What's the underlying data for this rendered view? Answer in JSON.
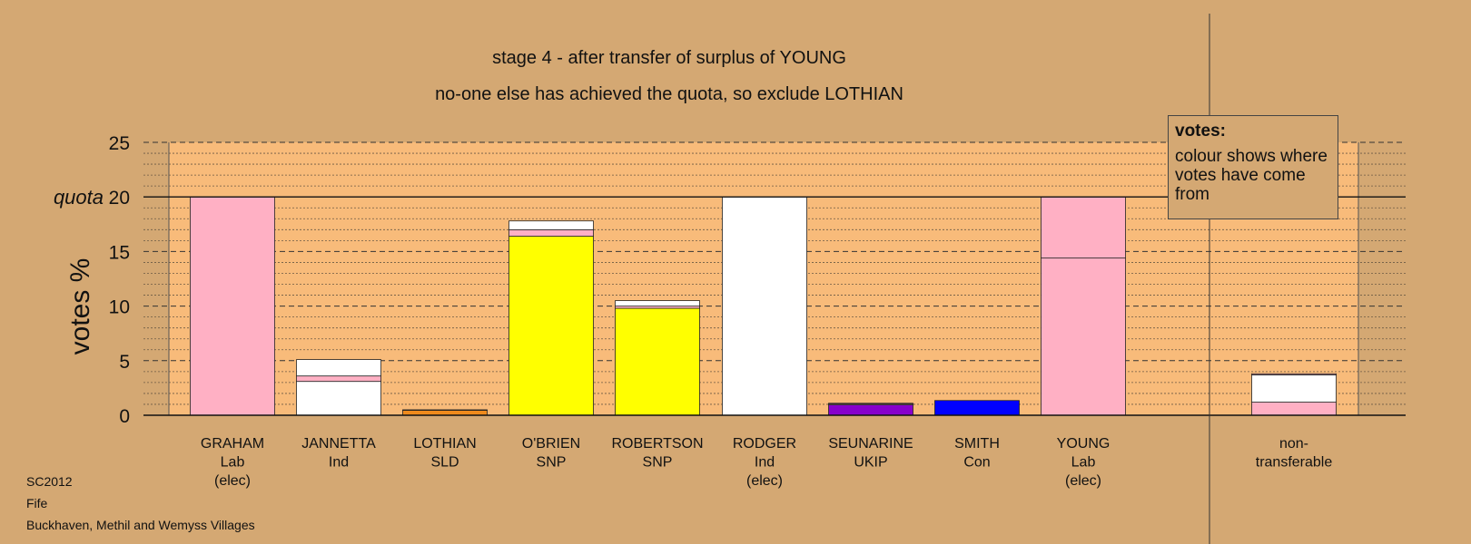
{
  "titles": {
    "line1": "stage 4 - after transfer of surplus of YOUNG",
    "line2": "no-one else has achieved the quota, so exclude LOTHIAN"
  },
  "legend_box": {
    "title": "votes:",
    "text": "colour shows where votes have come from"
  },
  "footer": {
    "line1": "SC2012",
    "line2": "Fife",
    "line3": "Buckhaven, Methil and Wemyss Villages"
  },
  "colors": {
    "background": "#d4a873",
    "plot_area": "#f8bb7a",
    "Lab": "#ffb0c4",
    "Ind": "#ffffff",
    "SLD": "#ee8a1c",
    "SNP": "#ffff00",
    "UKIP": "#8800cc",
    "Con": "#0000ff"
  },
  "chart_data": {
    "type": "bar",
    "stacked": true,
    "ylabel": "votes %",
    "ylim": [
      0,
      25
    ],
    "yticks": [
      0,
      5,
      10,
      15,
      20,
      25
    ],
    "quota": 20,
    "quota_label": "quota",
    "grid": true,
    "bars": [
      {
        "name": "GRAHAM",
        "party": "Lab",
        "note": "(elec)",
        "segments": [
          {
            "color": "Lab",
            "value": 20.0
          }
        ]
      },
      {
        "name": "JANNETTA",
        "party": "Ind",
        "note": "",
        "segments": [
          {
            "color": "Ind",
            "value": 3.1
          },
          {
            "color": "Lab",
            "value": 0.5
          },
          {
            "color": "Ind",
            "value": 1.5
          }
        ]
      },
      {
        "name": "LOTHIAN",
        "party": "SLD",
        "note": "",
        "segments": [
          {
            "color": "SLD",
            "value": 0.45
          },
          {
            "color": "Lab",
            "value": 0.05
          }
        ]
      },
      {
        "name": "O'BRIEN",
        "party": "SNP",
        "note": "",
        "segments": [
          {
            "color": "SNP",
            "value": 16.4
          },
          {
            "color": "Lab",
            "value": 0.6
          },
          {
            "color": "Ind",
            "value": 0.8
          }
        ]
      },
      {
        "name": "ROBERTSON",
        "party": "SNP",
        "note": "",
        "segments": [
          {
            "color": "SNP",
            "value": 9.8
          },
          {
            "color": "Lab",
            "value": 0.2
          },
          {
            "color": "Ind",
            "value": 0.5
          }
        ]
      },
      {
        "name": "RODGER",
        "party": "Ind",
        "note": "(elec)",
        "segments": [
          {
            "color": "Ind",
            "value": 20.0
          }
        ]
      },
      {
        "name": "SEUNARINE",
        "party": "UKIP",
        "note": "",
        "segments": [
          {
            "color": "UKIP",
            "value": 0.95
          },
          {
            "color": "Lab",
            "value": 0.1
          },
          {
            "color": "Ind",
            "value": 0.05
          }
        ]
      },
      {
        "name": "SMITH",
        "party": "Con",
        "note": "",
        "segments": [
          {
            "color": "Con",
            "value": 1.35
          }
        ]
      },
      {
        "name": "YOUNG",
        "party": "Lab",
        "note": "(elec)",
        "segments": [
          {
            "color": "Lab",
            "value": 14.4
          },
          {
            "color": "Lab",
            "value": 5.6
          }
        ]
      },
      {
        "name": "non-",
        "party": "transferable",
        "note": "",
        "segments": [
          {
            "color": "Lab",
            "value": 1.2
          },
          {
            "color": "Ind",
            "value": 2.5
          },
          {
            "color": "Lab",
            "value": 0.1
          }
        ]
      }
    ]
  }
}
